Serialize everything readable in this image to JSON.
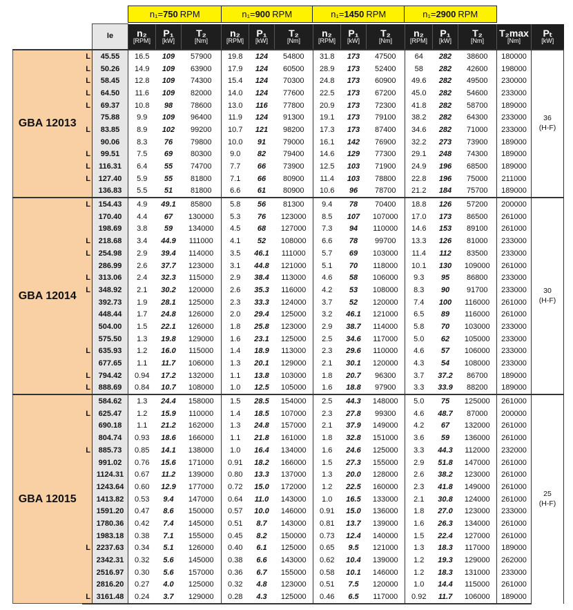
{
  "speed_headers": [
    {
      "prefix": "n₁=",
      "value": "750",
      "unit": "RPM"
    },
    {
      "prefix": "n₁=",
      "value": "900",
      "unit": "RPM"
    },
    {
      "prefix": "n₁=",
      "value": "1450",
      "unit": "RPM"
    },
    {
      "prefix": "n₁=",
      "value": "2900",
      "unit": "RPM"
    }
  ],
  "column_headers": {
    "ie": "Ie",
    "sub": [
      {
        "main": "n₂",
        "unit": "[RPM]"
      },
      {
        "main": "P₁",
        "unit": "[kW]"
      },
      {
        "main": "T₂",
        "unit": "[Nm]"
      }
    ],
    "t2max": {
      "main": "T₂max",
      "unit": "[Nm]"
    },
    "pt": {
      "main": "Pₜ",
      "unit": "[kW]"
    }
  },
  "colors": {
    "yellow_header": "#fff200",
    "model_bg": "#f9cfa4",
    "ie_bg": "#e6e6e6",
    "header_bg": "#1e1e1e"
  },
  "groups": [
    {
      "model": "GBA 12013",
      "pt": "36",
      "pt_note": "(H-F)",
      "rows": [
        [
          "L",
          "45.55",
          "16.5",
          "109",
          "57900",
          "19.8",
          "124",
          "54800",
          "31.8",
          "173",
          "47500",
          "64",
          "282",
          "38600",
          "180000"
        ],
        [
          "L",
          "50.26",
          "14.9",
          "109",
          "63900",
          "17.9",
          "124",
          "60500",
          "28.9",
          "173",
          "52400",
          "58",
          "282",
          "42600",
          "198000"
        ],
        [
          "L",
          "58.45",
          "12.8",
          "109",
          "74300",
          "15.4",
          "124",
          "70300",
          "24.8",
          "173",
          "60900",
          "49.6",
          "282",
          "49500",
          "230000"
        ],
        [
          "L",
          "64.50",
          "11.6",
          "109",
          "82000",
          "14.0",
          "124",
          "77600",
          "22.5",
          "173",
          "67200",
          "45.0",
          "282",
          "54600",
          "233000"
        ],
        [
          "L",
          "69.37",
          "10.8",
          "98",
          "78600",
          "13.0",
          "116",
          "77800",
          "20.9",
          "173",
          "72300",
          "41.8",
          "282",
          "58700",
          "189000"
        ],
        [
          "",
          "75.88",
          "9.9",
          "109",
          "96400",
          "11.9",
          "124",
          "91300",
          "19.1",
          "173",
          "79100",
          "38.2",
          "282",
          "64300",
          "233000"
        ],
        [
          "L",
          "83.85",
          "8.9",
          "102",
          "99200",
          "10.7",
          "121",
          "98200",
          "17.3",
          "173",
          "87400",
          "34.6",
          "282",
          "71000",
          "233000"
        ],
        [
          "",
          "90.06",
          "8.3",
          "76",
          "79800",
          "10.0",
          "91",
          "79000",
          "16.1",
          "142",
          "76900",
          "32.2",
          "273",
          "73900",
          "189000"
        ],
        [
          "L",
          "99.51",
          "7.5",
          "69",
          "80300",
          "9.0",
          "82",
          "79400",
          "14.6",
          "129",
          "77300",
          "29.1",
          "248",
          "74300",
          "189000"
        ],
        [
          "L",
          "116.31",
          "6.4",
          "55",
          "74700",
          "7.7",
          "66",
          "73900",
          "12.5",
          "103",
          "71900",
          "24.9",
          "196",
          "68500",
          "189000"
        ],
        [
          "L",
          "127.40",
          "5.9",
          "55",
          "81800",
          "7.1",
          "66",
          "80900",
          "11.4",
          "103",
          "78800",
          "22.8",
          "196",
          "75000",
          "211000"
        ],
        [
          "",
          "136.83",
          "5.5",
          "51",
          "81800",
          "6.6",
          "61",
          "80900",
          "10.6",
          "96",
          "78700",
          "21.2",
          "184",
          "75700",
          "189000"
        ]
      ]
    },
    {
      "model": "GBA 12014",
      "pt": "30",
      "pt_note": "(H-F)",
      "rows": [
        [
          "L",
          "154.43",
          "4.9",
          "49.1",
          "85800",
          "5.8",
          "56",
          "81300",
          "9.4",
          "78",
          "70400",
          "18.8",
          "126",
          "57200",
          "200000"
        ],
        [
          "",
          "170.40",
          "4.4",
          "67",
          "130000",
          "5.3",
          "76",
          "123000",
          "8.5",
          "107",
          "107000",
          "17.0",
          "173",
          "86500",
          "261000"
        ],
        [
          "",
          "198.69",
          "3.8",
          "59",
          "134000",
          "4.5",
          "68",
          "127000",
          "7.3",
          "94",
          "110000",
          "14.6",
          "153",
          "89100",
          "261000"
        ],
        [
          "L",
          "218.68",
          "3.4",
          "44.9",
          "111000",
          "4.1",
          "52",
          "108000",
          "6.6",
          "78",
          "99700",
          "13.3",
          "126",
          "81000",
          "233000"
        ],
        [
          "L",
          "254.98",
          "2.9",
          "39.4",
          "114000",
          "3.5",
          "46.1",
          "111000",
          "5.7",
          "69",
          "103000",
          "11.4",
          "112",
          "83500",
          "233000"
        ],
        [
          "",
          "286.99",
          "2.6",
          "37.7",
          "123000",
          "3.1",
          "44.8",
          "121000",
          "5.1",
          "70",
          "118000",
          "10.1",
          "130",
          "109000",
          "261000"
        ],
        [
          "L",
          "313.06",
          "2.4",
          "32.3",
          "115000",
          "2.9",
          "38.4",
          "113000",
          "4.6",
          "58",
          "106000",
          "9.3",
          "95",
          "86800",
          "233000"
        ],
        [
          "L",
          "348.92",
          "2.1",
          "30.2",
          "120000",
          "2.6",
          "35.3",
          "116000",
          "4.2",
          "53",
          "108000",
          "8.3",
          "90",
          "91700",
          "233000"
        ],
        [
          "",
          "392.73",
          "1.9",
          "28.1",
          "125000",
          "2.3",
          "33.3",
          "124000",
          "3.7",
          "52",
          "120000",
          "7.4",
          "100",
          "116000",
          "261000"
        ],
        [
          "",
          "448.44",
          "1.7",
          "24.8",
          "126000",
          "2.0",
          "29.4",
          "125000",
          "3.2",
          "46.1",
          "121000",
          "6.5",
          "89",
          "116000",
          "261000"
        ],
        [
          "",
          "504.00",
          "1.5",
          "22.1",
          "126000",
          "1.8",
          "25.8",
          "123000",
          "2.9",
          "38.7",
          "114000",
          "5.8",
          "70",
          "103000",
          "233000"
        ],
        [
          "",
          "575.50",
          "1.3",
          "19.8",
          "129000",
          "1.6",
          "23.1",
          "125000",
          "2.5",
          "34.6",
          "117000",
          "5.0",
          "62",
          "105000",
          "233000"
        ],
        [
          "L",
          "635.93",
          "1.2",
          "16.0",
          "115000",
          "1.4",
          "18.9",
          "113000",
          "2.3",
          "29.6",
          "110000",
          "4.6",
          "57",
          "106000",
          "233000"
        ],
        [
          "",
          "677.65",
          "1.1",
          "11.7",
          "106000",
          "1.3",
          "20.1",
          "129000",
          "2.1",
          "30.1",
          "120000",
          "4.3",
          "54",
          "108000",
          "233000"
        ],
        [
          "L",
          "794.42",
          "0.94",
          "17.2",
          "132000",
          "1.1",
          "13.8",
          "103000",
          "1.8",
          "20.7",
          "96300",
          "3.7",
          "37.2",
          "86700",
          "189000"
        ],
        [
          "L",
          "888.69",
          "0.84",
          "10.7",
          "108000",
          "1.0",
          "12.5",
          "105000",
          "1.6",
          "18.8",
          "97900",
          "3.3",
          "33.9",
          "88200",
          "189000"
        ]
      ]
    },
    {
      "model": "GBA 12015",
      "pt": "25",
      "pt_note": "(H-F)",
      "rows": [
        [
          "",
          "584.62",
          "1.3",
          "24.4",
          "158000",
          "1.5",
          "28.5",
          "154000",
          "2.5",
          "44.3",
          "148000",
          "5.0",
          "75",
          "125000",
          "261000"
        ],
        [
          "L",
          "625.47",
          "1.2",
          "15.9",
          "110000",
          "1.4",
          "18.5",
          "107000",
          "2.3",
          "27.8",
          "99300",
          "4.6",
          "48.7",
          "87000",
          "200000"
        ],
        [
          "",
          "690.18",
          "1.1",
          "21.2",
          "162000",
          "1.3",
          "24.8",
          "157000",
          "2.1",
          "37.9",
          "149000",
          "4.2",
          "67",
          "132000",
          "261000"
        ],
        [
          "",
          "804.74",
          "0.93",
          "18.6",
          "166000",
          "1.1",
          "21.8",
          "161000",
          "1.8",
          "32.8",
          "151000",
          "3.6",
          "59",
          "136000",
          "261000"
        ],
        [
          "L",
          "885.73",
          "0.85",
          "14.1",
          "138000",
          "1.0",
          "16.4",
          "134000",
          "1.6",
          "24.6",
          "125000",
          "3.3",
          "44.3",
          "112000",
          "232000"
        ],
        [
          "",
          "991.02",
          "0.76",
          "15.6",
          "171000",
          "0.91",
          "18.2",
          "166000",
          "1.5",
          "27.3",
          "155000",
          "2.9",
          "51.8",
          "147000",
          "261000"
        ],
        [
          "",
          "1124.31",
          "0.67",
          "11.2",
          "139000",
          "0.80",
          "13.3",
          "137000",
          "1.3",
          "20.0",
          "128000",
          "2.6",
          "38.2",
          "123000",
          "261000"
        ],
        [
          "",
          "1243.64",
          "0.60",
          "12.9",
          "177000",
          "0.72",
          "15.0",
          "172000",
          "1.2",
          "22.5",
          "160000",
          "2.3",
          "41.8",
          "149000",
          "261000"
        ],
        [
          "",
          "1413.82",
          "0.53",
          "9.4",
          "147000",
          "0.64",
          "11.0",
          "143000",
          "1.0",
          "16.5",
          "133000",
          "2.1",
          "30.8",
          "124000",
          "261000"
        ],
        [
          "",
          "1591.20",
          "0.47",
          "8.6",
          "150000",
          "0.57",
          "10.0",
          "146000",
          "0.91",
          "15.0",
          "136000",
          "1.8",
          "27.0",
          "123000",
          "233000"
        ],
        [
          "",
          "1780.36",
          "0.42",
          "7.4",
          "145000",
          "0.51",
          "8.7",
          "143000",
          "0.81",
          "13.7",
          "139000",
          "1.6",
          "26.3",
          "134000",
          "261000"
        ],
        [
          "",
          "1983.18",
          "0.38",
          "7.1",
          "155000",
          "0.45",
          "8.2",
          "150000",
          "0.73",
          "12.4",
          "140000",
          "1.5",
          "22.4",
          "127000",
          "261000"
        ],
        [
          "L",
          "2237.63",
          "0.34",
          "5.1",
          "126000",
          "0.40",
          "6.1",
          "125000",
          "0.65",
          "9.5",
          "121000",
          "1.3",
          "18.3",
          "117000",
          "189000"
        ],
        [
          "",
          "2342.31",
          "0.32",
          "5.6",
          "145000",
          "0.38",
          "6.6",
          "143000",
          "0.62",
          "10.4",
          "139000",
          "1.2",
          "19.3",
          "129000",
          "262000"
        ],
        [
          "",
          "2516.97",
          "0.30",
          "5.6",
          "157000",
          "0.36",
          "6.7",
          "155000",
          "0.58",
          "10.1",
          "146000",
          "1.2",
          "18.3",
          "131000",
          "233000"
        ],
        [
          "",
          "2816.20",
          "0.27",
          "4.0",
          "125000",
          "0.32",
          "4.8",
          "123000",
          "0.51",
          "7.5",
          "120000",
          "1.0",
          "14.4",
          "115000",
          "261000"
        ],
        [
          "L",
          "3161.48",
          "0.24",
          "3.7",
          "129000",
          "0.28",
          "4.3",
          "125000",
          "0.46",
          "6.5",
          "117000",
          "0.92",
          "11.7",
          "106000",
          "189000"
        ]
      ]
    }
  ]
}
